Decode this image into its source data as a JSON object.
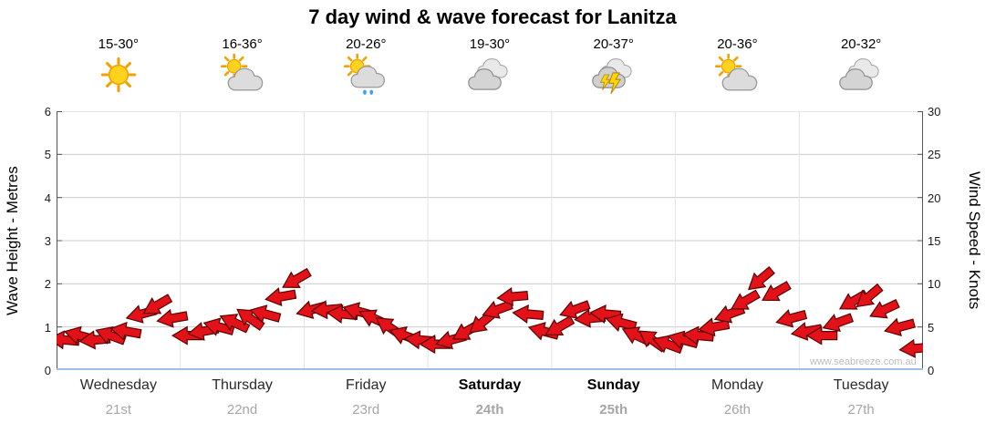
{
  "chart_data": {
    "type": "wind-arrows-timeseries",
    "title": "7 day wind & wave forecast for Lanitza",
    "left_axis": {
      "label": "Wave Height - Metres",
      "min": 0,
      "max": 6,
      "ticks": [
        0,
        1,
        2,
        3,
        4,
        5,
        6
      ]
    },
    "right_axis": {
      "label": "Wind Speed - Knots",
      "min": 0,
      "max": 30,
      "ticks": [
        0,
        5,
        10,
        15,
        20,
        25,
        30
      ]
    },
    "grid": true,
    "legend": "none",
    "watermark": "www.seabreeze.com.au",
    "days": [
      {
        "name": "Wednesday",
        "date": "21st",
        "temp": "15-30°",
        "icon": "sunny",
        "bold": false
      },
      {
        "name": "Thursday",
        "date": "22nd",
        "temp": "16-36°",
        "icon": "partly-cloudy",
        "bold": false
      },
      {
        "name": "Friday",
        "date": "23rd",
        "temp": "20-26°",
        "icon": "sun-cloud-rain",
        "bold": false
      },
      {
        "name": "Saturday",
        "date": "24th",
        "temp": "19-30°",
        "icon": "cloudy",
        "bold": true
      },
      {
        "name": "Sunday",
        "date": "25th",
        "temp": "20-37°",
        "icon": "thunderstorm",
        "bold": true
      },
      {
        "name": "Monday",
        "date": "26th",
        "temp": "20-36°",
        "icon": "partly-cloudy",
        "bold": false
      },
      {
        "name": "Tuesday",
        "date": "27th",
        "temp": "20-32°",
        "icon": "cloudy",
        "bold": false
      }
    ],
    "wind": {
      "units": "knots",
      "arrow_color": "#e31219",
      "per_day": [
        {
          "day": "Wednesday",
          "knots": [
            3.5,
            4,
            3.5,
            4,
            4.5,
            6.5,
            7.5,
            6
          ],
          "dir_deg": [
            185,
            195,
            175,
            200,
            190,
            165,
            150,
            170
          ]
        },
        {
          "day": "Thursday",
          "knots": [
            4,
            4.5,
            5,
            5.5,
            6,
            6.5,
            8.5,
            10.5
          ],
          "dir_deg": [
            180,
            170,
            195,
            205,
            215,
            195,
            170,
            150
          ]
        },
        {
          "day": "Friday",
          "knots": [
            7,
            7,
            6.5,
            6.8,
            6,
            5,
            4,
            3.5
          ],
          "dir_deg": [
            165,
            175,
            185,
            195,
            205,
            215,
            200,
            185
          ]
        },
        {
          "day": "Saturday",
          "knots": [
            3,
            3.5,
            4.5,
            5.5,
            7,
            8.5,
            6.5,
            4.5
          ],
          "dir_deg": [
            180,
            165,
            150,
            140,
            160,
            175,
            185,
            195
          ]
        },
        {
          "day": "Sunday",
          "knots": [
            5,
            7,
            6,
            6.5,
            5.5,
            4,
            3.5,
            3
          ],
          "dir_deg": [
            150,
            160,
            175,
            185,
            195,
            205,
            215,
            200
          ]
        },
        {
          "day": "Monday",
          "knots": [
            3.5,
            4,
            5,
            6.5,
            8,
            10.5,
            9,
            6
          ],
          "dir_deg": [
            195,
            185,
            170,
            160,
            150,
            140,
            150,
            165
          ]
        },
        {
          "day": "Tuesday",
          "knots": [
            4.5,
            4,
            5.5,
            8,
            8.5,
            7,
            5,
            2.5
          ],
          "dir_deg": [
            170,
            180,
            160,
            150,
            140,
            155,
            165,
            175
          ]
        }
      ]
    }
  }
}
